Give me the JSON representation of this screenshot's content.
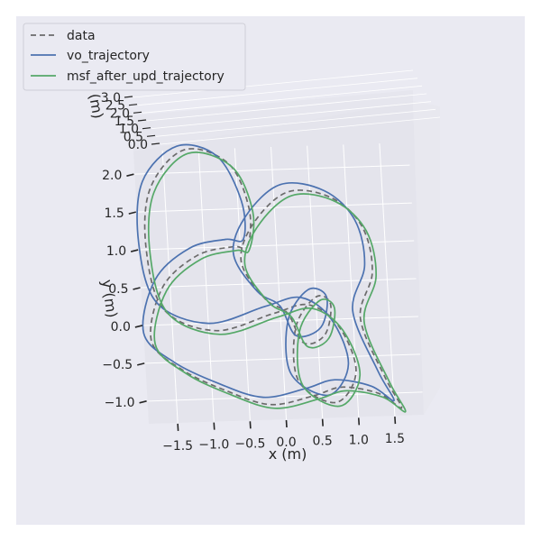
{
  "chart_data": {
    "type": "line",
    "projection": "3d",
    "xlabel": "x (m)",
    "ylabel": "y (m)",
    "zlabel": "z (m)",
    "x_ticks": [
      "−1.5",
      "−1.0",
      "−0.5",
      "0.0",
      "0.5",
      "1.0",
      "1.5"
    ],
    "y_ticks": [
      "−1.0",
      "−0.5",
      "0.0",
      "0.5",
      "1.0",
      "1.5",
      "2.0"
    ],
    "z_ticks": [
      "0.0",
      "0.5",
      "1.0",
      "1.5",
      "2.0",
      "2.5",
      "3.0"
    ],
    "xlim": [
      -1.9,
      1.9
    ],
    "ylim": [
      -1.3,
      2.3
    ],
    "zlim": [
      0,
      3.0
    ],
    "grid": true,
    "legend_position": "top-left",
    "colors": {
      "background": "#eaeaf2",
      "pane": "#e4e4ec",
      "grid": "#ffffff",
      "data": "#6b6b6b",
      "vo_trajectory": "#4c72b0",
      "msf_after_upd_trajectory": "#55a868"
    },
    "series": [
      {
        "name": "data",
        "style": "dashed",
        "color": "#6b6b6b",
        "points": [
          [
            -0.4,
            1.0
          ],
          [
            -0.35,
            1.5
          ],
          [
            -0.6,
            2.1
          ],
          [
            -1.2,
            2.3
          ],
          [
            -1.7,
            1.8
          ],
          [
            -1.8,
            1.0
          ],
          [
            -1.6,
            0.2
          ],
          [
            -0.9,
            -0.1
          ],
          [
            -0.1,
            0.1
          ],
          [
            0.4,
            0.2
          ],
          [
            0.8,
            -0.1
          ],
          [
            1.0,
            -0.7
          ],
          [
            0.7,
            -1.1
          ],
          [
            0.2,
            -0.8
          ],
          [
            0.2,
            -0.1
          ],
          [
            0.5,
            0.3
          ],
          [
            0.7,
            0.2
          ],
          [
            0.6,
            -0.2
          ],
          [
            0.3,
            -0.3
          ],
          [
            0.1,
            0.1
          ],
          [
            -0.2,
            0.3
          ],
          [
            -0.5,
            0.8
          ],
          [
            -0.3,
            1.3
          ],
          [
            0.2,
            1.7
          ],
          [
            0.8,
            1.6
          ],
          [
            1.2,
            1.2
          ],
          [
            1.3,
            0.6
          ],
          [
            1.1,
            0.0
          ],
          [
            1.4,
            -0.8
          ],
          [
            1.6,
            -1.2
          ],
          [
            1.3,
            -1.0
          ],
          [
            0.8,
            -0.9
          ],
          [
            0.4,
            -1.0
          ],
          [
            -0.2,
            -1.1
          ],
          [
            -0.8,
            -0.9
          ],
          [
            -1.4,
            -0.6
          ],
          [
            -1.8,
            -0.2
          ],
          [
            -1.6,
            0.5
          ],
          [
            -1.1,
            0.9
          ],
          [
            -0.6,
            1.0
          ]
        ]
      },
      {
        "name": "vo_trajectory",
        "style": "solid",
        "color": "#4c72b0",
        "points": [
          [
            -0.45,
            1.1
          ],
          [
            -0.45,
            1.6
          ],
          [
            -0.75,
            2.2
          ],
          [
            -1.3,
            2.35
          ],
          [
            -1.8,
            1.9
          ],
          [
            -1.9,
            1.1
          ],
          [
            -1.7,
            0.3
          ],
          [
            -1.0,
            0.0
          ],
          [
            -0.2,
            0.2
          ],
          [
            0.3,
            0.3
          ],
          [
            0.7,
            0.0
          ],
          [
            0.9,
            -0.6
          ],
          [
            0.6,
            -1.0
          ],
          [
            0.1,
            -0.7
          ],
          [
            0.1,
            0.0
          ],
          [
            0.4,
            0.4
          ],
          [
            0.65,
            0.3
          ],
          [
            0.55,
            -0.1
          ],
          [
            0.2,
            -0.2
          ],
          [
            0.0,
            0.2
          ],
          [
            -0.3,
            0.4
          ],
          [
            -0.6,
            0.9
          ],
          [
            -0.4,
            1.4
          ],
          [
            0.1,
            1.8
          ],
          [
            0.7,
            1.7
          ],
          [
            1.1,
            1.3
          ],
          [
            1.2,
            0.7
          ],
          [
            1.0,
            0.1
          ],
          [
            1.3,
            -0.7
          ],
          [
            1.5,
            -1.1
          ],
          [
            1.2,
            -0.9
          ],
          [
            0.7,
            -0.8
          ],
          [
            0.3,
            -0.9
          ],
          [
            -0.3,
            -1.0
          ],
          [
            -0.9,
            -0.8
          ],
          [
            -1.5,
            -0.5
          ],
          [
            -1.9,
            -0.1
          ],
          [
            -1.7,
            0.6
          ],
          [
            -1.2,
            1.0
          ],
          [
            -0.7,
            1.1
          ]
        ]
      },
      {
        "name": "msf_after_upd_trajectory",
        "style": "solid",
        "color": "#55a868",
        "points": [
          [
            -0.38,
            0.95
          ],
          [
            -0.3,
            1.45
          ],
          [
            -0.55,
            2.05
          ],
          [
            -1.15,
            2.25
          ],
          [
            -1.65,
            1.75
          ],
          [
            -1.75,
            0.95
          ],
          [
            -1.55,
            0.15
          ],
          [
            -0.85,
            -0.15
          ],
          [
            -0.05,
            0.05
          ],
          [
            0.45,
            0.15
          ],
          [
            0.85,
            -0.15
          ],
          [
            1.05,
            -0.75
          ],
          [
            0.75,
            -1.15
          ],
          [
            0.25,
            -0.85
          ],
          [
            0.25,
            -0.15
          ],
          [
            0.55,
            0.25
          ],
          [
            0.75,
            0.15
          ],
          [
            0.65,
            -0.25
          ],
          [
            0.35,
            -0.35
          ],
          [
            0.15,
            0.05
          ],
          [
            -0.15,
            0.25
          ],
          [
            -0.45,
            0.75
          ],
          [
            -0.25,
            1.25
          ],
          [
            0.25,
            1.65
          ],
          [
            0.85,
            1.55
          ],
          [
            1.25,
            1.15
          ],
          [
            1.35,
            0.55
          ],
          [
            1.15,
            -0.05
          ],
          [
            1.45,
            -0.85
          ],
          [
            1.65,
            -1.25
          ],
          [
            1.35,
            -1.05
          ],
          [
            0.85,
            -0.95
          ],
          [
            0.45,
            -1.05
          ],
          [
            -0.15,
            -1.15
          ],
          [
            -0.75,
            -0.95
          ],
          [
            -1.35,
            -0.65
          ],
          [
            -1.75,
            -0.25
          ],
          [
            -1.55,
            0.45
          ],
          [
            -1.05,
            0.85
          ],
          [
            -0.55,
            0.95
          ]
        ]
      }
    ]
  }
}
